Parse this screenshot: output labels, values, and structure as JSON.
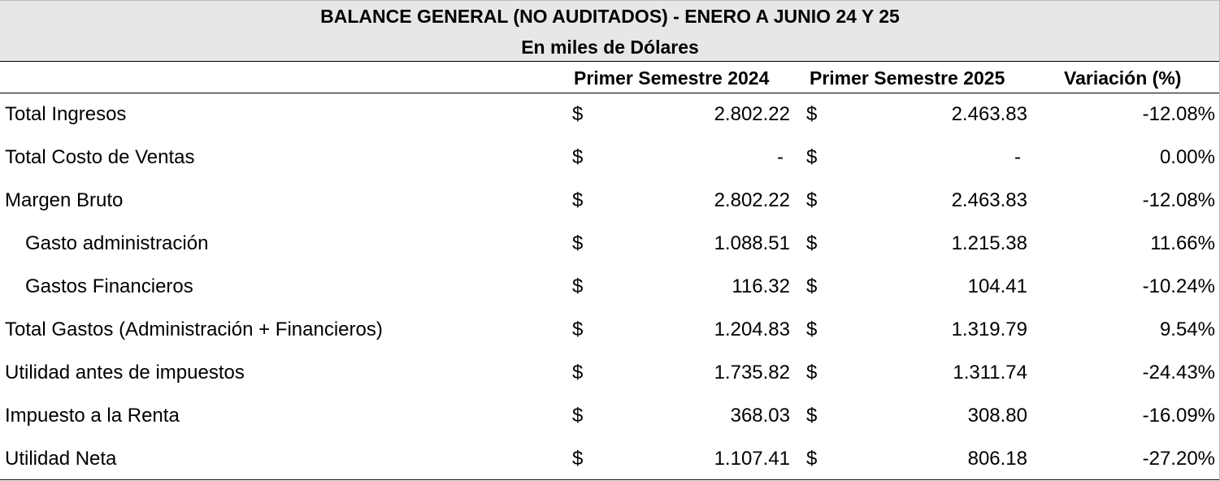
{
  "title": {
    "line1": "BALANCE GENERAL (NO AUDITADOS) - ENERO A JUNIO 24 Y 25",
    "line2": "En miles de Dólares"
  },
  "columns": {
    "label": "",
    "s2024": "Primer Semestre 2024",
    "s2025": "Primer Semestre 2025",
    "variation": "Variación (%)"
  },
  "rows": [
    {
      "label": "Total Ingresos",
      "cur1": "$",
      "v2024": "2.802.22",
      "cur2": "$",
      "v2025": "2.463.83",
      "variation": "-12.08%"
    },
    {
      "label": "Total Costo de Ventas",
      "cur1": "$",
      "v2024": "-",
      "cur2": "$",
      "v2025": "-",
      "variation": "0.00%"
    },
    {
      "label": "Margen Bruto",
      "cur1": "$",
      "v2024": "2.802.22",
      "cur2": "$",
      "v2025": "2.463.83",
      "variation": "-12.08%"
    },
    {
      "label": "Gasto administración",
      "cur1": "$",
      "v2024": "1.088.51",
      "cur2": "$",
      "v2025": "1.215.38",
      "variation": "11.66%"
    },
    {
      "label": "Gastos Financieros",
      "cur1": "$",
      "v2024": "116.32",
      "cur2": "$",
      "v2025": "104.41",
      "variation": "-10.24%"
    },
    {
      "label": "Total Gastos (Administración + Financieros)",
      "cur1": "$",
      "v2024": "1.204.83",
      "cur2": "$",
      "v2025": "1.319.79",
      "variation": "9.54%"
    },
    {
      "label": "Utilidad antes de impuestos",
      "cur1": "$",
      "v2024": "1.735.82",
      "cur2": "$",
      "v2025": "1.311.74",
      "variation": "-24.43%"
    },
    {
      "label": "Impuesto a la Renta",
      "cur1": "$",
      "v2024": "368.03",
      "cur2": "$",
      "v2025": "308.80",
      "variation": "-16.09%"
    },
    {
      "label": "Utilidad Neta",
      "cur1": "$",
      "v2024": "1.107.41",
      "cur2": "$",
      "v2025": "806.18",
      "variation": "-27.20%"
    }
  ]
}
